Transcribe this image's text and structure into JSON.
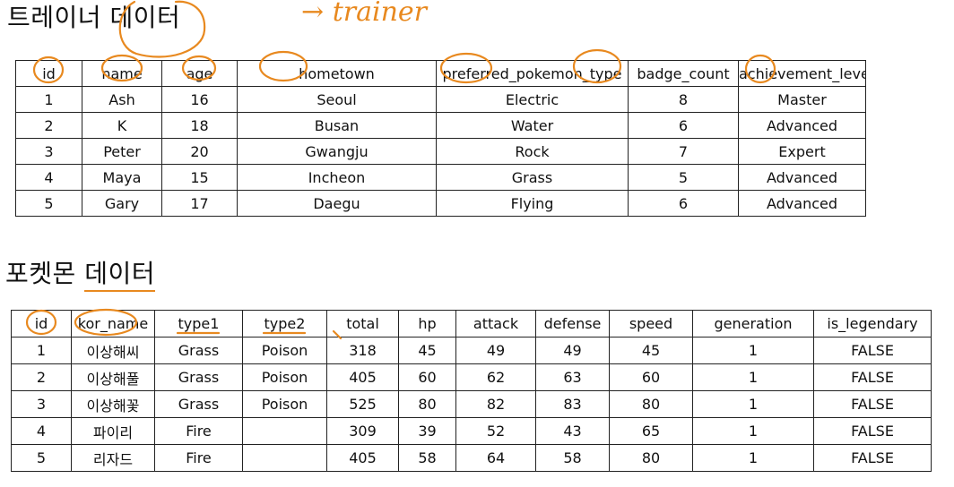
{
  "trainer_section": {
    "title_part1": "트레이너 ",
    "title_part2": "데이터",
    "annotation": "trainer",
    "columns": [
      "id",
      "name",
      "age",
      "hometown",
      "preferred_pokemon_type",
      "badge_count",
      "achievement_level"
    ],
    "rows": [
      [
        "1",
        "Ash",
        "16",
        "Seoul",
        "Electric",
        "8",
        "Master"
      ],
      [
        "2",
        "K",
        "18",
        "Busan",
        "Water",
        "6",
        "Advanced"
      ],
      [
        "3",
        "Peter",
        "20",
        "Gwangju",
        "Rock",
        "7",
        "Expert"
      ],
      [
        "4",
        "Maya",
        "15",
        "Incheon",
        "Grass",
        "5",
        "Advanced"
      ],
      [
        "5",
        "Gary",
        "17",
        "Daegu",
        "Flying",
        "6",
        "Advanced"
      ]
    ]
  },
  "pokemon_section": {
    "title_part1": "포켓몬 ",
    "title_part2": "데이터",
    "columns": [
      "id",
      "kor_name",
      "type1",
      "type2",
      "total",
      "hp",
      "attack",
      "defense",
      "speed",
      "generation",
      "is_legendary"
    ],
    "rows": [
      [
        "1",
        "이상해씨",
        "Grass",
        "Poison",
        "318",
        "45",
        "49",
        "49",
        "45",
        "1",
        "FALSE"
      ],
      [
        "2",
        "이상해풀",
        "Grass",
        "Poison",
        "405",
        "60",
        "62",
        "63",
        "60",
        "1",
        "FALSE"
      ],
      [
        "3",
        "이상해꽃",
        "Grass",
        "Poison",
        "525",
        "80",
        "82",
        "83",
        "80",
        "1",
        "FALSE"
      ],
      [
        "4",
        "파이리",
        "Fire",
        "",
        "309",
        "39",
        "52",
        "43",
        "65",
        "1",
        "FALSE"
      ],
      [
        "5",
        "리자드",
        "Fire",
        "",
        "405",
        "58",
        "64",
        "58",
        "80",
        "1",
        "FALSE"
      ]
    ]
  },
  "colors": {
    "annotation": "#e8891f",
    "border": "#222222"
  }
}
